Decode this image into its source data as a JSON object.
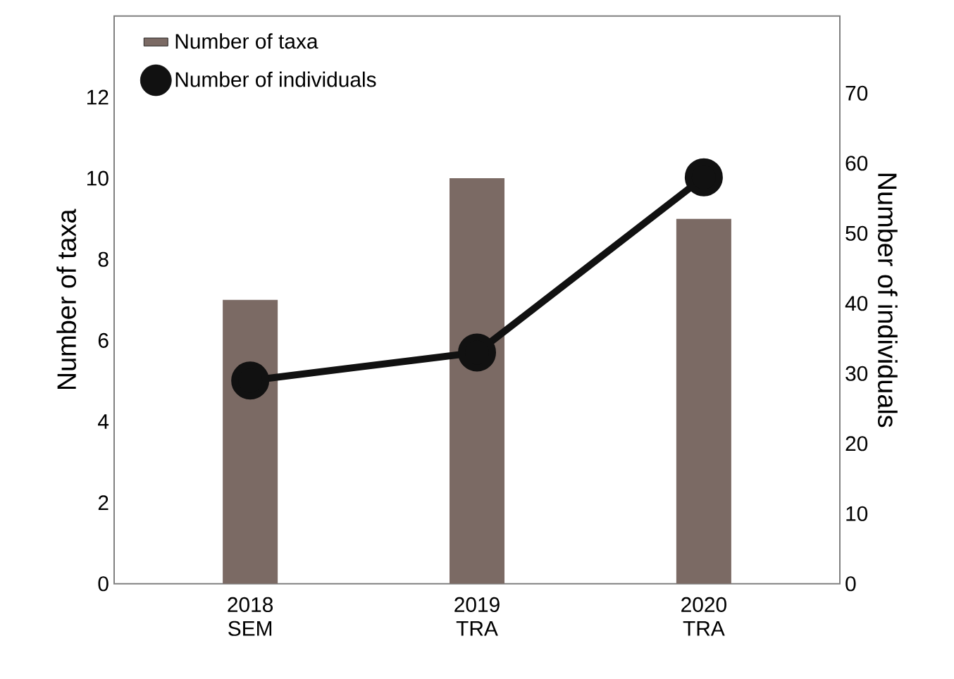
{
  "chart_data": {
    "type": "bar",
    "categories": [
      "2018 SEM",
      "2019 TRA",
      "2020 TRA"
    ],
    "ylabel": "Number of taxa",
    "y2label": "Number of individuals",
    "ylim": [
      0,
      14
    ],
    "yticks": [
      0,
      2,
      4,
      6,
      8,
      10,
      12
    ],
    "y2lim": [
      0,
      81
    ],
    "y2ticks": [
      0,
      10,
      20,
      30,
      40,
      50,
      60,
      70
    ],
    "legend": "top left",
    "marker": "circle",
    "series": [
      {
        "name": "Number of taxa",
        "color": "#7b6a64",
        "values": [
          7,
          10,
          9
        ]
      },
      {
        "name": "Number of individuals",
        "type": "line",
        "axis": "y2",
        "color": "#111111",
        "values": [
          29,
          33,
          58
        ]
      }
    ]
  }
}
